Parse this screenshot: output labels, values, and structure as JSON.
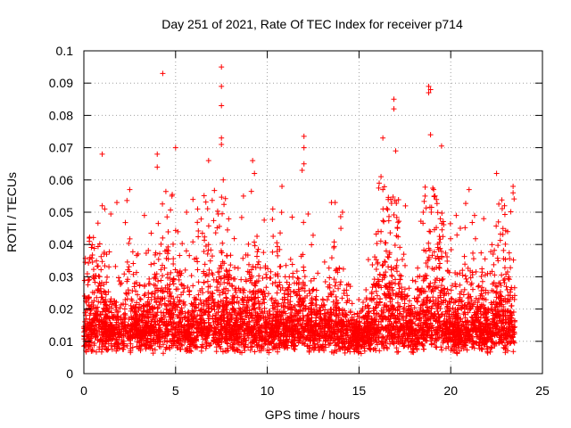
{
  "chart_data": {
    "type": "scatter",
    "title": "Day 251 of 2021, Rate Of TEC Index for receiver p714",
    "xlabel": "GPS time / hours",
    "ylabel": "ROTI / TECUs",
    "xlim": [
      0,
      25
    ],
    "ylim": [
      0,
      0.1
    ],
    "xticks": [
      "0",
      "5",
      "10",
      "15",
      "20",
      "25"
    ],
    "yticks": [
      "0",
      "0.01",
      "0.02",
      "0.03",
      "0.04",
      "0.05",
      "0.06",
      "0.07",
      "0.08",
      "0.09",
      "0.1"
    ],
    "grid": true,
    "marker": "plus",
    "color": "#ff0000",
    "x_range_of_data": [
      0,
      23.5
    ],
    "series": [
      {
        "x": [
          4.3,
          7.5,
          7.5,
          7.5,
          18.8,
          18.8,
          18.9,
          16.9,
          16.9,
          19.5,
          18.9,
          16.3,
          12.0,
          12.0,
          7.5,
          7.5,
          5.0,
          4.0,
          4.0,
          6.8,
          1.0,
          17.0,
          16.1,
          16.2,
          16.3,
          9.2,
          9.3,
          10.8,
          7.6,
          21.0,
          22.5,
          23.4,
          23.4,
          12.0,
          11.9,
          13.5,
          13.7,
          14.1,
          2.5,
          1.8,
          0.3,
          0.3,
          1.0,
          4.8,
          3.3,
          5.6,
          6.2,
          8.7,
          10.3,
          18.5,
          18.6,
          20.3,
          21.3,
          21.8,
          22.6,
          23.1
        ],
        "y": [
          0.093,
          0.095,
          0.089,
          0.083,
          0.089,
          0.087,
          0.088,
          0.085,
          0.082,
          0.0705,
          0.074,
          0.073,
          0.0735,
          0.07,
          0.073,
          0.071,
          0.07,
          0.068,
          0.064,
          0.066,
          0.068,
          0.069,
          0.059,
          0.061,
          0.057,
          0.066,
          0.062,
          0.058,
          0.06,
          0.057,
          0.062,
          0.058,
          0.056,
          0.065,
          0.063,
          0.053,
          0.053,
          0.05,
          0.057,
          0.053,
          0.042,
          0.041,
          0.052,
          0.055,
          0.049,
          0.05,
          0.051,
          0.055,
          0.051,
          0.05,
          0.055,
          0.049,
          0.049,
          0.048,
          0.047,
          0.044
        ]
      }
    ]
  }
}
